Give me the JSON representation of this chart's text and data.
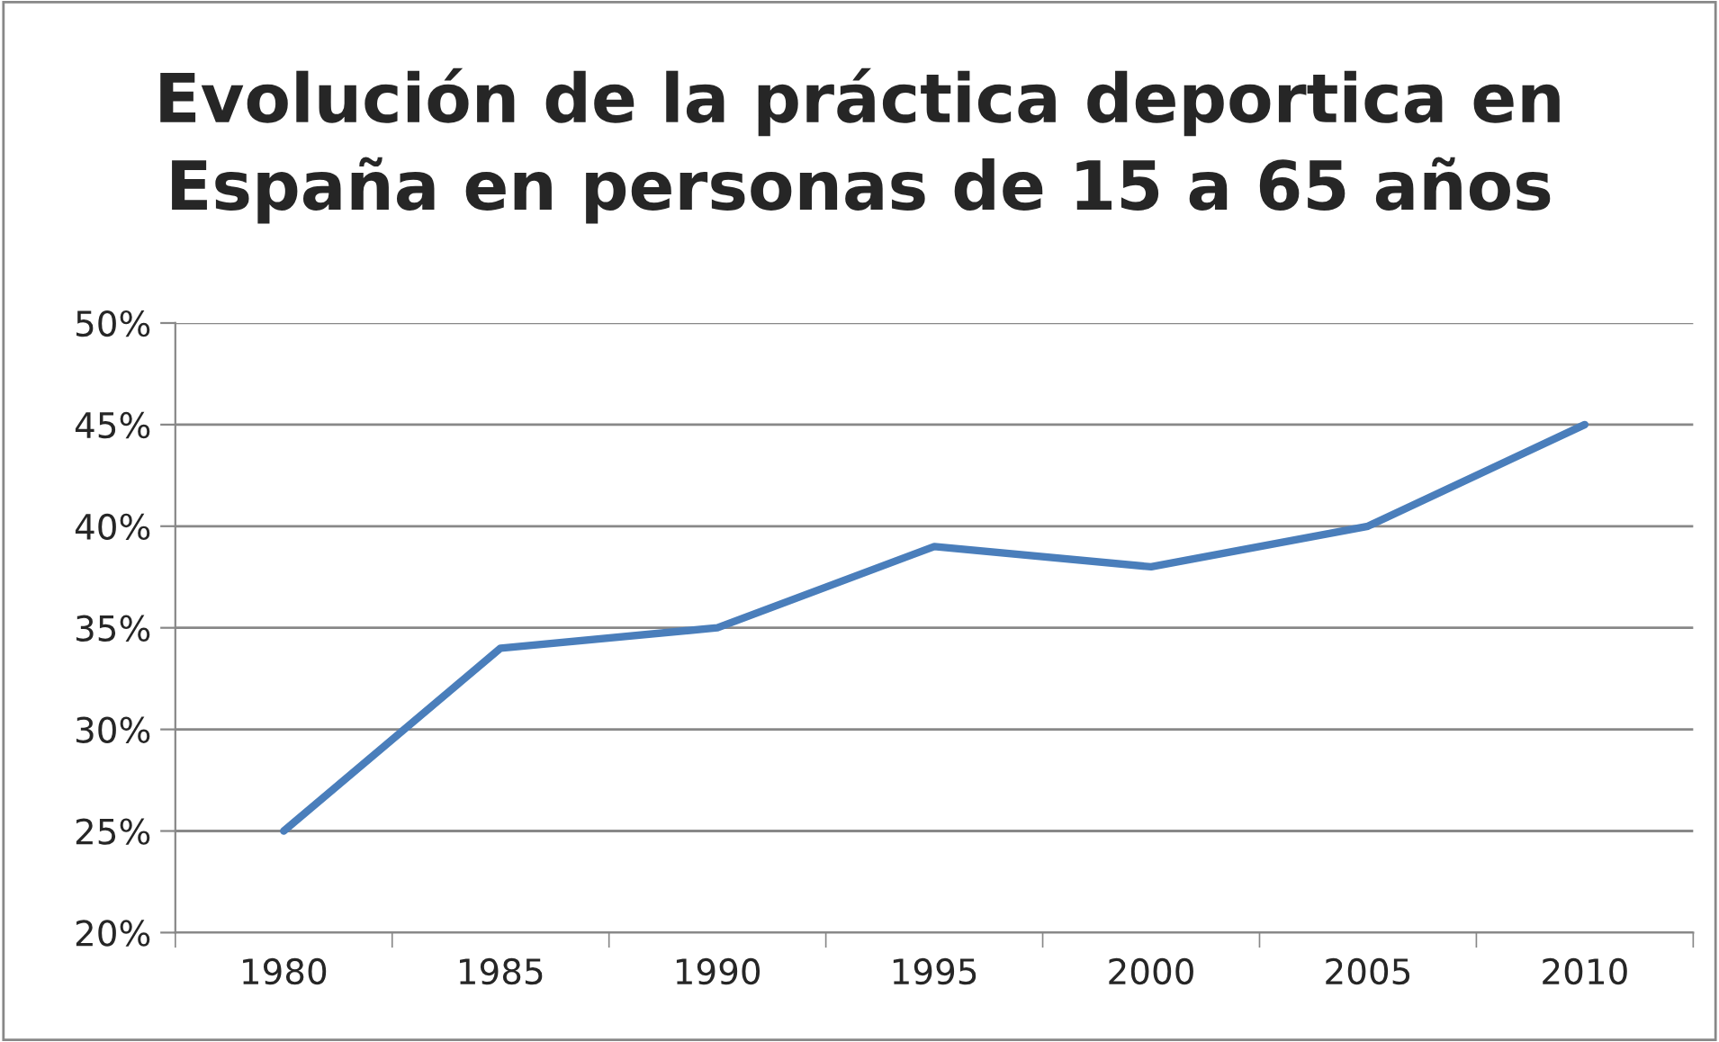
{
  "chart_data": {
    "type": "line",
    "title": "Evolución de la práctica deportica en\nEspaña en personas de 15 a 65 años",
    "categories": [
      "1980",
      "1985",
      "1990",
      "1995",
      "2000",
      "2005",
      "2010"
    ],
    "series": [
      {
        "color": "#4a7ebb",
        "values": [
          25,
          34,
          35,
          39,
          38,
          40,
          45
        ]
      }
    ],
    "ylim": [
      20,
      50
    ],
    "yticks": [
      {
        "value": 20,
        "label": "20%"
      },
      {
        "value": 25,
        "label": "25%"
      },
      {
        "value": 30,
        "label": "30%"
      },
      {
        "value": 35,
        "label": "35%"
      },
      {
        "value": 40,
        "label": "40%"
      },
      {
        "value": 45,
        "label": "45%"
      },
      {
        "value": 50,
        "label": "50%"
      }
    ],
    "grid": "y",
    "legend": false,
    "marker": "none",
    "line_style": "solid"
  }
}
